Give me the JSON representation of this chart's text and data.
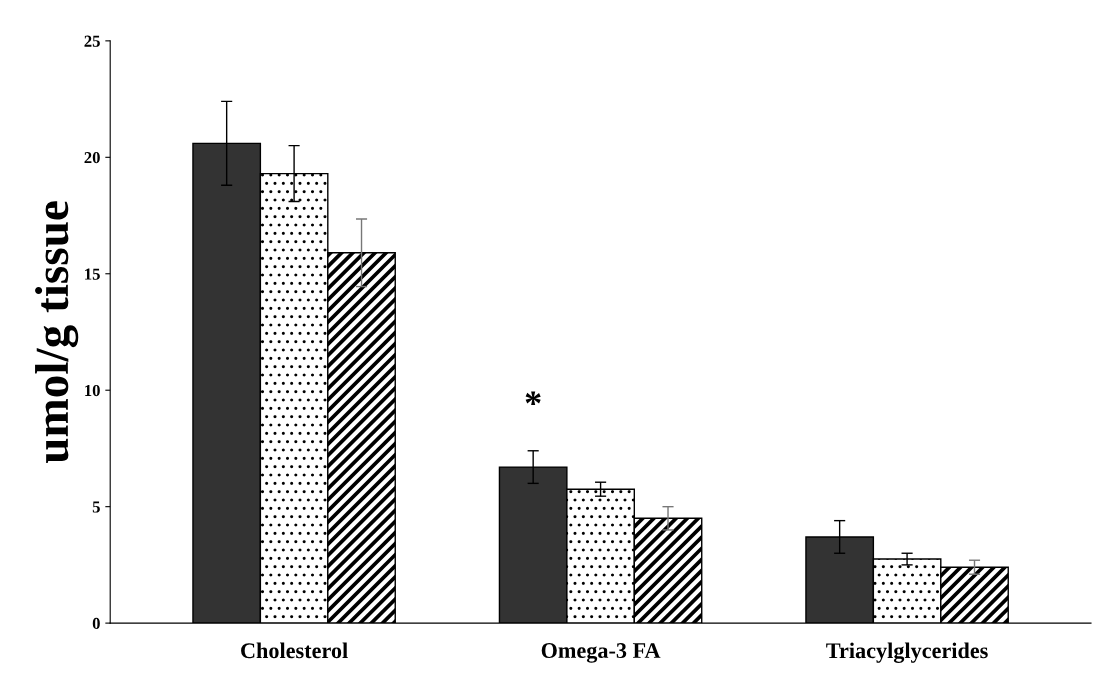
{
  "chart_data": {
    "type": "bar",
    "ylabel": "umol/g tissue",
    "categories": [
      "Cholesterol",
      "Omega-3 FA",
      "Triacylglycerides"
    ],
    "series": [
      {
        "color": "#333333",
        "values": [
          20.6,
          6.7,
          3.7
        ],
        "errors": [
          1.8,
          0.7,
          0.7
        ]
      },
      {
        "color": "#ffffff",
        "values": [
          19.3,
          5.75,
          2.75
        ],
        "errors": [
          1.2,
          0.3,
          0.25
        ]
      },
      {
        "color": "#000000",
        "values": [
          15.9,
          4.5,
          2.4
        ],
        "errors": [
          1.45,
          0.5,
          0.3
        ]
      }
    ],
    "annotations": [
      "*"
    ],
    "ylim": [
      0,
      25
    ],
    "yticks": [
      0,
      5,
      10,
      15,
      20,
      25
    ],
    "grid": false,
    "legend": false
  }
}
